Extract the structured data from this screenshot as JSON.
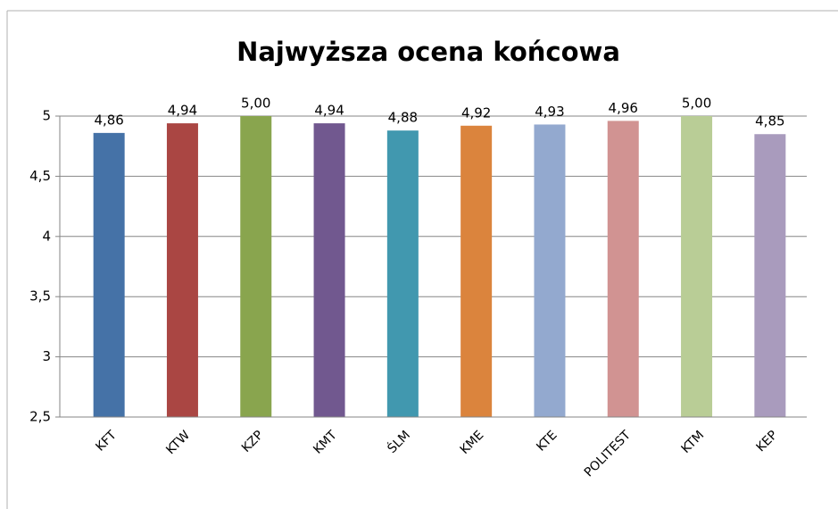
{
  "chart_data": {
    "type": "bar",
    "title": "Najwyższa ocena końcowa",
    "categories": [
      "KFT",
      "KTW",
      "KZP",
      "KMT",
      "ŚLM",
      "KME",
      "KTE",
      "POLITEST",
      "KTM",
      "KEP"
    ],
    "values": [
      4.86,
      4.94,
      5,
      4.94,
      4.88,
      4.92,
      4.93,
      4.96,
      5,
      4.85
    ],
    "value_labels": [
      "4,86",
      "4,94",
      "5,00",
      "4,94",
      "4,88",
      "4,92",
      "4,93",
      "4,96",
      "5,00",
      "4,85"
    ],
    "colors": [
      "#4572a7",
      "#aa4643",
      "#89a54e",
      "#71588f",
      "#4198af",
      "#db843d",
      "#93a9cf",
      "#d19392",
      "#b9cd96",
      "#a99bbd"
    ],
    "ylim": [
      2.5,
      5
    ],
    "yticks": [
      {
        "value": 2.5,
        "label": "2,5"
      },
      3,
      {
        "value": 3.5,
        "label": "3,5"
      },
      4,
      {
        "value": 4.5,
        "label": "4,5"
      },
      5
    ],
    "grid": true
  }
}
